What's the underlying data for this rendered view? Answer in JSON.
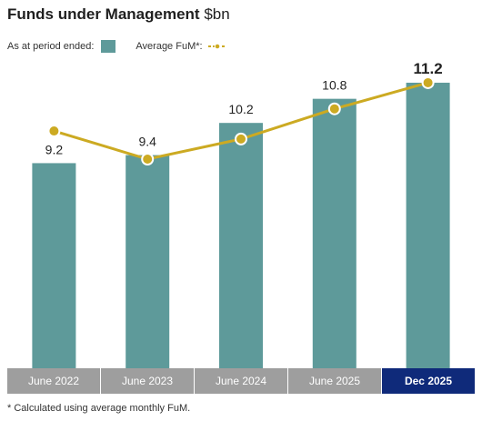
{
  "title": "Funds under Management",
  "title_unit": "$bn",
  "legend": {
    "bar_label": "As at period ended:",
    "line_label": "Average FuM*:"
  },
  "footnote": "* Calculated using average monthly FuM.",
  "colors": {
    "bar": "#5e9a9a",
    "line": "#ccaa22",
    "highlight_axis": "#0f2a7a",
    "axis": "#9e9e9e"
  },
  "chart_data": {
    "type": "bar",
    "categories": [
      "June 2022",
      "June 2023",
      "June 2024",
      "June 2025",
      "Dec 2025"
    ],
    "series": [
      {
        "name": "As at period ended",
        "type": "bar",
        "values": [
          9.2,
          9.4,
          10.2,
          10.8,
          11.2
        ]
      },
      {
        "name": "Average FuM*",
        "type": "line",
        "values": [
          10.0,
          9.3,
          9.8,
          10.55,
          11.2
        ]
      }
    ],
    "data_labels": [
      "9.2",
      "9.4",
      "10.2",
      "10.8",
      "11.2"
    ],
    "highlighted_category": "Dec 2025",
    "ylim": [
      4.1,
      11.9
    ],
    "grid": false,
    "legend_position": "top-left"
  }
}
